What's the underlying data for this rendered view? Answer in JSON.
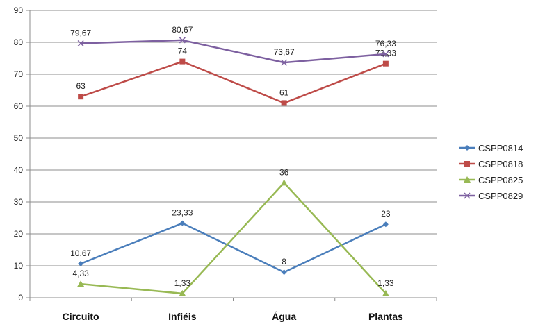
{
  "chart_data": {
    "type": "line",
    "categories": [
      "Circuito",
      "Infiéis",
      "Água",
      "Plantas"
    ],
    "ylim": [
      0,
      90
    ],
    "yticks": [
      0,
      10,
      20,
      30,
      40,
      50,
      60,
      70,
      80,
      90
    ],
    "grid": true,
    "legend_position": "right",
    "series": [
      {
        "name": "CSPP0814",
        "color": "#4a7ebb",
        "marker": "diamond",
        "values": [
          10.67,
          23.33,
          8,
          23
        ],
        "labels": [
          "10,67",
          "23,33",
          "8",
          "23"
        ]
      },
      {
        "name": "CSPP0818",
        "color": "#be4b48",
        "marker": "square",
        "values": [
          63,
          74,
          61,
          73.33
        ],
        "labels": [
          "63",
          "74",
          "61",
          "73,33"
        ]
      },
      {
        "name": "CSPP0825",
        "color": "#98b954",
        "marker": "triangle",
        "values": [
          4.33,
          1.33,
          36,
          1.33
        ],
        "labels": [
          "4,33",
          "1,33",
          "36",
          "1,33"
        ]
      },
      {
        "name": "CSPP0829",
        "color": "#7d60a0",
        "marker": "x",
        "values": [
          79.67,
          80.67,
          73.67,
          76.33
        ],
        "labels": [
          "79,67",
          "80,67",
          "73,67",
          "76,33"
        ]
      }
    ]
  }
}
